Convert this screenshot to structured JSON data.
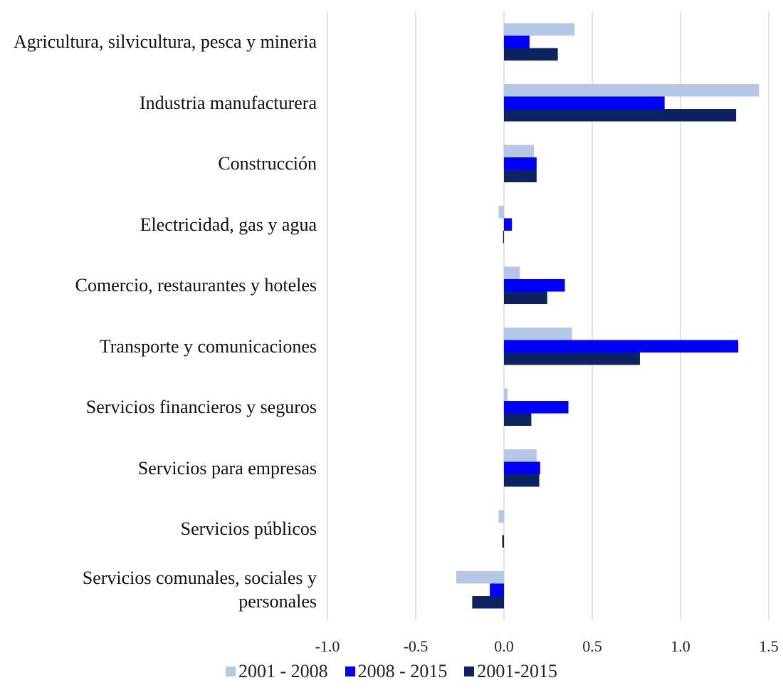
{
  "chart_data": {
    "type": "hbar",
    "categories": [
      "Agricultura, silvicultura, pesca y mineria",
      "Industria manufacturera",
      "Construcción",
      "Electricidad, gas y agua",
      "Comercio, restaurantes y hoteles",
      "Transporte y comunicaciones",
      "Servicios financieros y seguros",
      "Servicios para empresas",
      "Servicios públicos",
      "Servicios comunales, sociales y personales"
    ],
    "series": [
      {
        "name": "2001 - 2008",
        "color": "#b4c7e7",
        "values": [
          0.4,
          1.445,
          0.17,
          -0.03,
          0.09,
          0.385,
          0.02,
          0.185,
          -0.03,
          -0.27
        ]
      },
      {
        "name": "2008 - 2015",
        "color": "#0000ff",
        "values": [
          0.145,
          0.91,
          0.185,
          0.045,
          0.345,
          1.327,
          0.365,
          0.205,
          0.0,
          -0.08
        ]
      },
      {
        "name": "2001-2015",
        "color": "#0d2261",
        "values": [
          0.305,
          1.315,
          0.185,
          -0.005,
          0.245,
          0.77,
          0.155,
          0.2,
          -0.01,
          -0.18
        ]
      }
    ],
    "xlim": [
      -1.0,
      1.5
    ],
    "xticks": [
      {
        "value": -1.0,
        "label": "-1.0"
      },
      {
        "value": -0.5,
        "label": "-0.5"
      },
      {
        "value": 0.0,
        "label": "0.0"
      },
      {
        "value": 0.5,
        "label": "0.5"
      },
      {
        "value": 1.0,
        "label": "1.0"
      },
      {
        "value": 1.5,
        "label": "1.5"
      }
    ],
    "grid": true,
    "legend": "bottom"
  }
}
